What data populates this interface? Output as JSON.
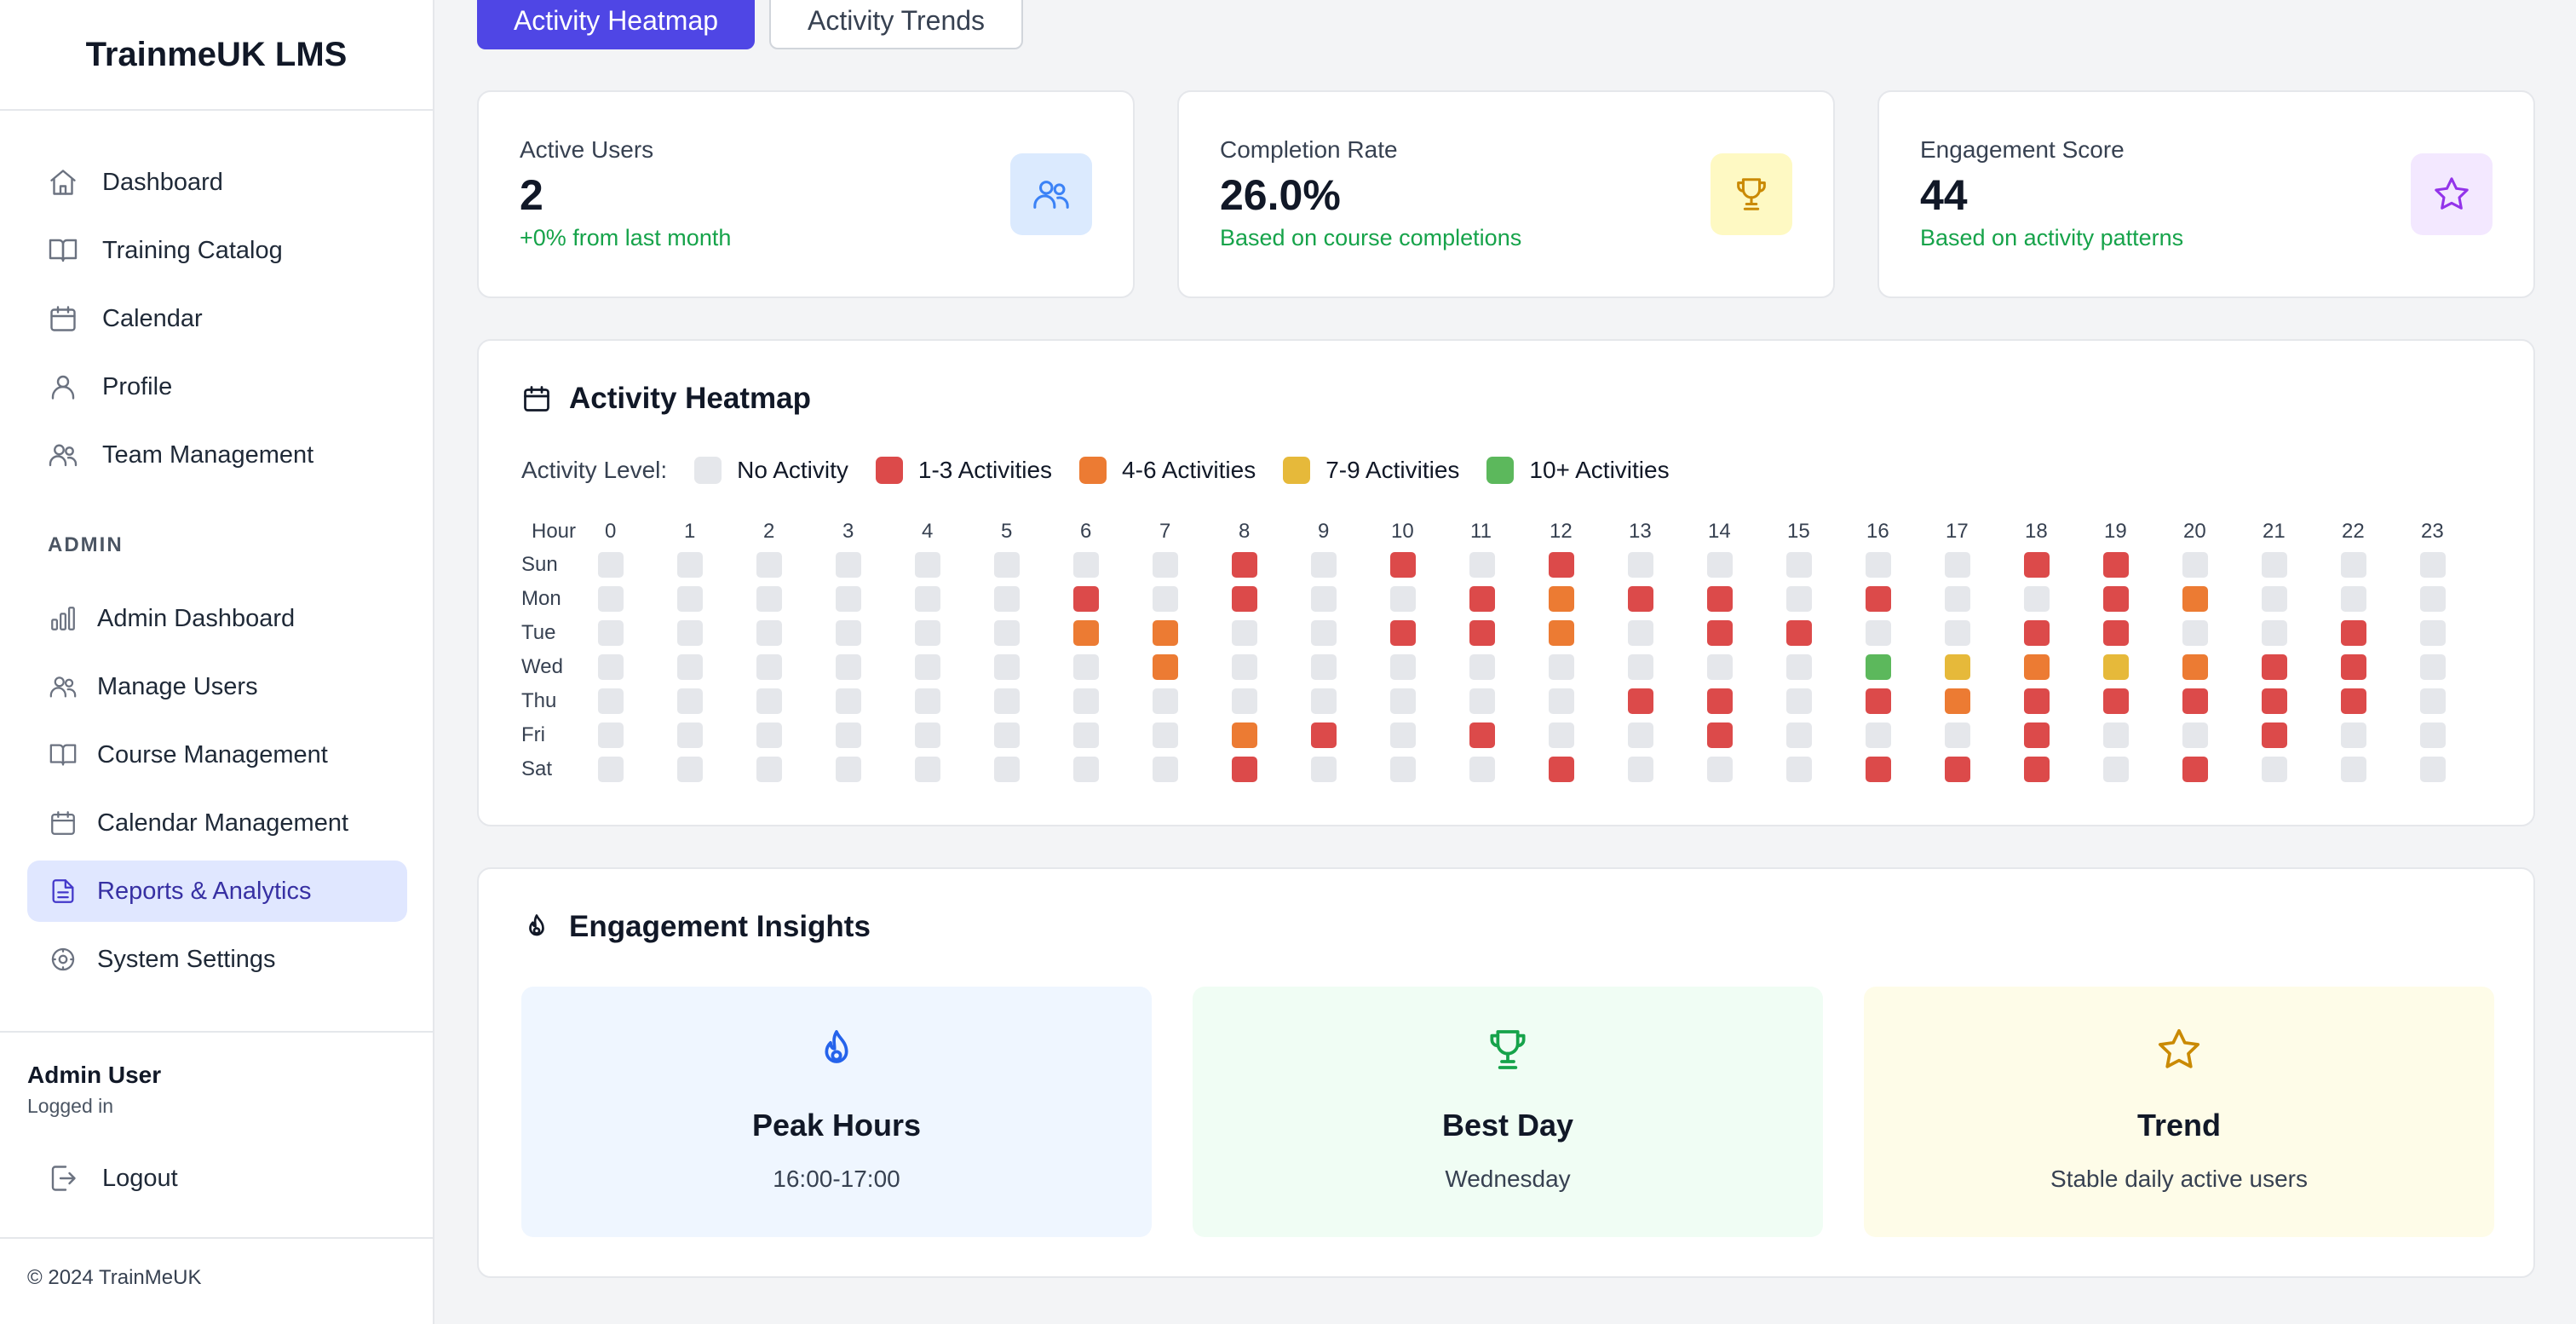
{
  "app": {
    "title": "TrainmeUK LMS"
  },
  "sidebar": {
    "items": [
      {
        "label": "Dashboard",
        "icon": "home-icon"
      },
      {
        "label": "Training Catalog",
        "icon": "book-icon"
      },
      {
        "label": "Calendar",
        "icon": "calendar-icon"
      },
      {
        "label": "Profile",
        "icon": "user-icon"
      },
      {
        "label": "Team Management",
        "icon": "users-icon"
      }
    ],
    "admin_label": "ADMIN",
    "admin_items": [
      {
        "label": "Admin Dashboard",
        "icon": "bar-chart-icon"
      },
      {
        "label": "Manage Users",
        "icon": "users-icon"
      },
      {
        "label": "Course Management",
        "icon": "book-icon"
      },
      {
        "label": "Calendar Management",
        "icon": "calendar-icon"
      },
      {
        "label": "Reports & Analytics",
        "icon": "file-text-icon",
        "active": true
      },
      {
        "label": "System Settings",
        "icon": "settings-icon"
      }
    ],
    "user": {
      "name": "Admin User",
      "status": "Logged in"
    },
    "logout_label": "Logout",
    "footer": "© 2024 TrainMeUK"
  },
  "tabs": [
    {
      "label": "Activity Heatmap",
      "active": true
    },
    {
      "label": "Activity Trends",
      "active": false
    }
  ],
  "stats": [
    {
      "label": "Active Users",
      "value": "2",
      "sub": "+0% from last month",
      "icon": "users-icon",
      "icon_bg": "#dbeafe",
      "icon_color": "#3b82f6"
    },
    {
      "label": "Completion Rate",
      "value": "26.0%",
      "sub": "Based on course completions",
      "icon": "trophy-icon",
      "icon_bg": "#fef9c3",
      "icon_color": "#ca8a04"
    },
    {
      "label": "Engagement Score",
      "value": "44",
      "sub": "Based on activity patterns",
      "icon": "star-icon",
      "icon_bg": "#f3e8ff",
      "icon_color": "#9333ea"
    }
  ],
  "heatmap": {
    "title": "Activity Heatmap",
    "legend_label": "Activity Level:",
    "legend": [
      {
        "label": "No Activity",
        "color": "#e5e7eb"
      },
      {
        "label": "1-3 Activities",
        "color": "#dc4a4a"
      },
      {
        "label": "4-6 Activities",
        "color": "#ec7b33"
      },
      {
        "label": "7-9 Activities",
        "color": "#e6b93a"
      },
      {
        "label": "10+ Activities",
        "color": "#5cb85c"
      }
    ],
    "hour_label": "Hour",
    "hours": [
      "0",
      "1",
      "2",
      "3",
      "4",
      "5",
      "6",
      "7",
      "8",
      "9",
      "10",
      "11",
      "12",
      "13",
      "14",
      "15",
      "16",
      "17",
      "18",
      "19",
      "20",
      "21",
      "22",
      "23"
    ],
    "days": [
      "Sun",
      "Mon",
      "Tue",
      "Wed",
      "Thu",
      "Fri",
      "Sat"
    ],
    "levels": [
      [
        0,
        0,
        0,
        0,
        0,
        0,
        0,
        0,
        1,
        0,
        1,
        0,
        1,
        0,
        0,
        0,
        0,
        0,
        1,
        1,
        0,
        0,
        0,
        0
      ],
      [
        0,
        0,
        0,
        0,
        0,
        0,
        1,
        0,
        1,
        0,
        0,
        1,
        2,
        1,
        1,
        0,
        1,
        0,
        0,
        1,
        2,
        0,
        0,
        0
      ],
      [
        0,
        0,
        0,
        0,
        0,
        0,
        2,
        2,
        0,
        0,
        1,
        1,
        2,
        0,
        1,
        1,
        0,
        0,
        1,
        1,
        0,
        0,
        1,
        0
      ],
      [
        0,
        0,
        0,
        0,
        0,
        0,
        0,
        2,
        0,
        0,
        0,
        0,
        0,
        0,
        0,
        0,
        4,
        3,
        2,
        3,
        2,
        1,
        1,
        0
      ],
      [
        0,
        0,
        0,
        0,
        0,
        0,
        0,
        0,
        0,
        0,
        0,
        0,
        0,
        1,
        1,
        0,
        1,
        2,
        1,
        1,
        1,
        1,
        1,
        0
      ],
      [
        0,
        0,
        0,
        0,
        0,
        0,
        0,
        0,
        2,
        1,
        0,
        1,
        0,
        0,
        1,
        0,
        0,
        0,
        1,
        0,
        0,
        1,
        0,
        0
      ],
      [
        0,
        0,
        0,
        0,
        0,
        0,
        0,
        0,
        1,
        0,
        0,
        0,
        1,
        0,
        0,
        0,
        1,
        1,
        1,
        0,
        1,
        0,
        0,
        0
      ]
    ]
  },
  "insights": {
    "title": "Engagement Insights",
    "cards": [
      {
        "title": "Peak Hours",
        "value": "16:00-17:00",
        "icon": "flame-icon",
        "bg": "#eff6ff",
        "color": "#2563eb"
      },
      {
        "title": "Best Day",
        "value": "Wednesday",
        "icon": "trophy-icon",
        "bg": "#f0fdf4",
        "color": "#16a34a"
      },
      {
        "title": "Trend",
        "value": "Stable daily active users",
        "icon": "star-icon",
        "bg": "#fefce8",
        "color": "#ca8a04"
      }
    ]
  }
}
